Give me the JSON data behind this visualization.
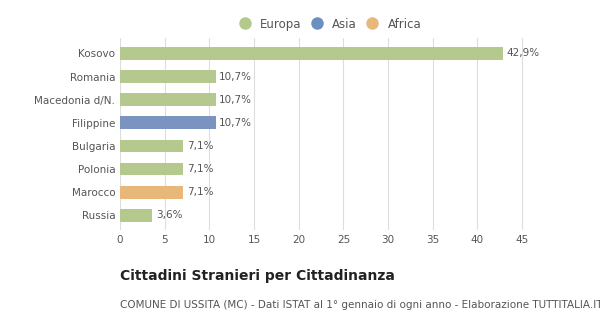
{
  "categories": [
    "Kosovo",
    "Romania",
    "Macedonia d/N.",
    "Filippine",
    "Bulgaria",
    "Polonia",
    "Marocco",
    "Russia"
  ],
  "values": [
    42.9,
    10.7,
    10.7,
    10.7,
    7.1,
    7.1,
    7.1,
    3.6
  ],
  "labels": [
    "42,9%",
    "10,7%",
    "10,7%",
    "10,7%",
    "7,1%",
    "7,1%",
    "7,1%",
    "3,6%"
  ],
  "colors": [
    "#b5c98e",
    "#b5c98e",
    "#b5c98e",
    "#7b93c0",
    "#b5c98e",
    "#b5c98e",
    "#e8b87a",
    "#b5c98e"
  ],
  "legend": [
    {
      "label": "Europa",
      "color": "#b5c98e"
    },
    {
      "label": "Asia",
      "color": "#6a8fc0"
    },
    {
      "label": "Africa",
      "color": "#e8b87a"
    }
  ],
  "xlim": [
    0,
    47
  ],
  "xticks": [
    0,
    5,
    10,
    15,
    20,
    25,
    30,
    35,
    40,
    45
  ],
  "title": "Cittadini Stranieri per Cittadinanza",
  "subtitle": "COMUNE DI USSITA (MC) - Dati ISTAT al 1° gennaio di ogni anno - Elaborazione TUTTITALIA.IT",
  "bg_color": "#ffffff",
  "grid_color": "#dddddd",
  "bar_height": 0.55,
  "title_fontsize": 10,
  "subtitle_fontsize": 7.5,
  "label_fontsize": 7.5,
  "tick_fontsize": 7.5,
  "legend_fontsize": 8.5
}
